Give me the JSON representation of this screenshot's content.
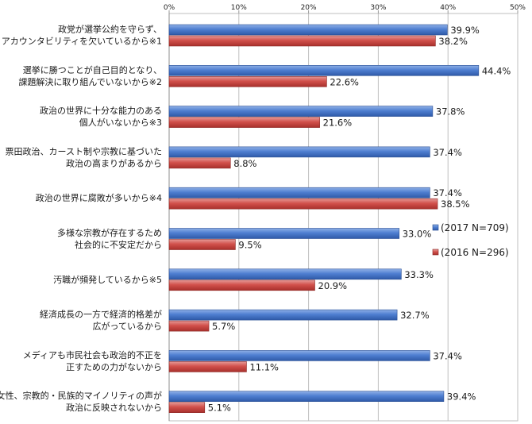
{
  "chart_data": {
    "type": "bar",
    "orientation": "horizontal",
    "xlim": [
      0,
      50
    ],
    "x_ticks": [
      "0%",
      "10%",
      "20%",
      "30%",
      "40%",
      "50%"
    ],
    "x_tick_values": [
      0,
      10,
      20,
      30,
      40,
      50
    ],
    "grid": true,
    "legend_position": "right",
    "categories": [
      [
        "政党が選挙公約を守らず、",
        "アカウンタビリティを欠いているから※1"
      ],
      [
        "選挙に勝つことが自己目的となり、",
        "課題解決に取り組んでいないから※2"
      ],
      [
        "政治の世界に十分な能力のある",
        "個人がいないから※3"
      ],
      [
        "票田政治、カースト制や宗教に基づいた",
        "政治の高まりがあるから"
      ],
      [
        "政治の世界に腐敗が多いから※4"
      ],
      [
        "多様な宗教が存在するため",
        "社会的に不安定だから"
      ],
      [
        "汚職が頻発しているから※5"
      ],
      [
        "経済成長の一方で経済的格差が",
        "広がっているから"
      ],
      [
        "メディアも市民社会も政治的不正を",
        "正すための力がないから"
      ],
      [
        "女性、宗教的・民族的マイノリティの声が",
        "政治に反映されないから"
      ]
    ],
    "series": [
      {
        "name": "(2017 N=709)",
        "color": "#4472c4",
        "values": [
          39.9,
          44.4,
          37.8,
          37.4,
          37.4,
          33.0,
          33.3,
          32.7,
          37.4,
          39.4
        ],
        "labels": [
          "39.9%",
          "44.4%",
          "37.8%",
          "37.4%",
          "37.4%",
          "33.0%",
          "33.3%",
          "32.7%",
          "37.4%",
          "39.4%"
        ]
      },
      {
        "name": "(2016 N=296)",
        "color": "#c0504d",
        "values": [
          38.2,
          22.6,
          21.6,
          8.8,
          38.5,
          9.5,
          20.9,
          5.7,
          11.1,
          5.1
        ],
        "labels": [
          "38.2%",
          "22.6%",
          "21.6%",
          "8.8%",
          "38.5%",
          "9.5%",
          "20.9%",
          "5.7%",
          "11.1%",
          "5.1%"
        ]
      }
    ]
  }
}
